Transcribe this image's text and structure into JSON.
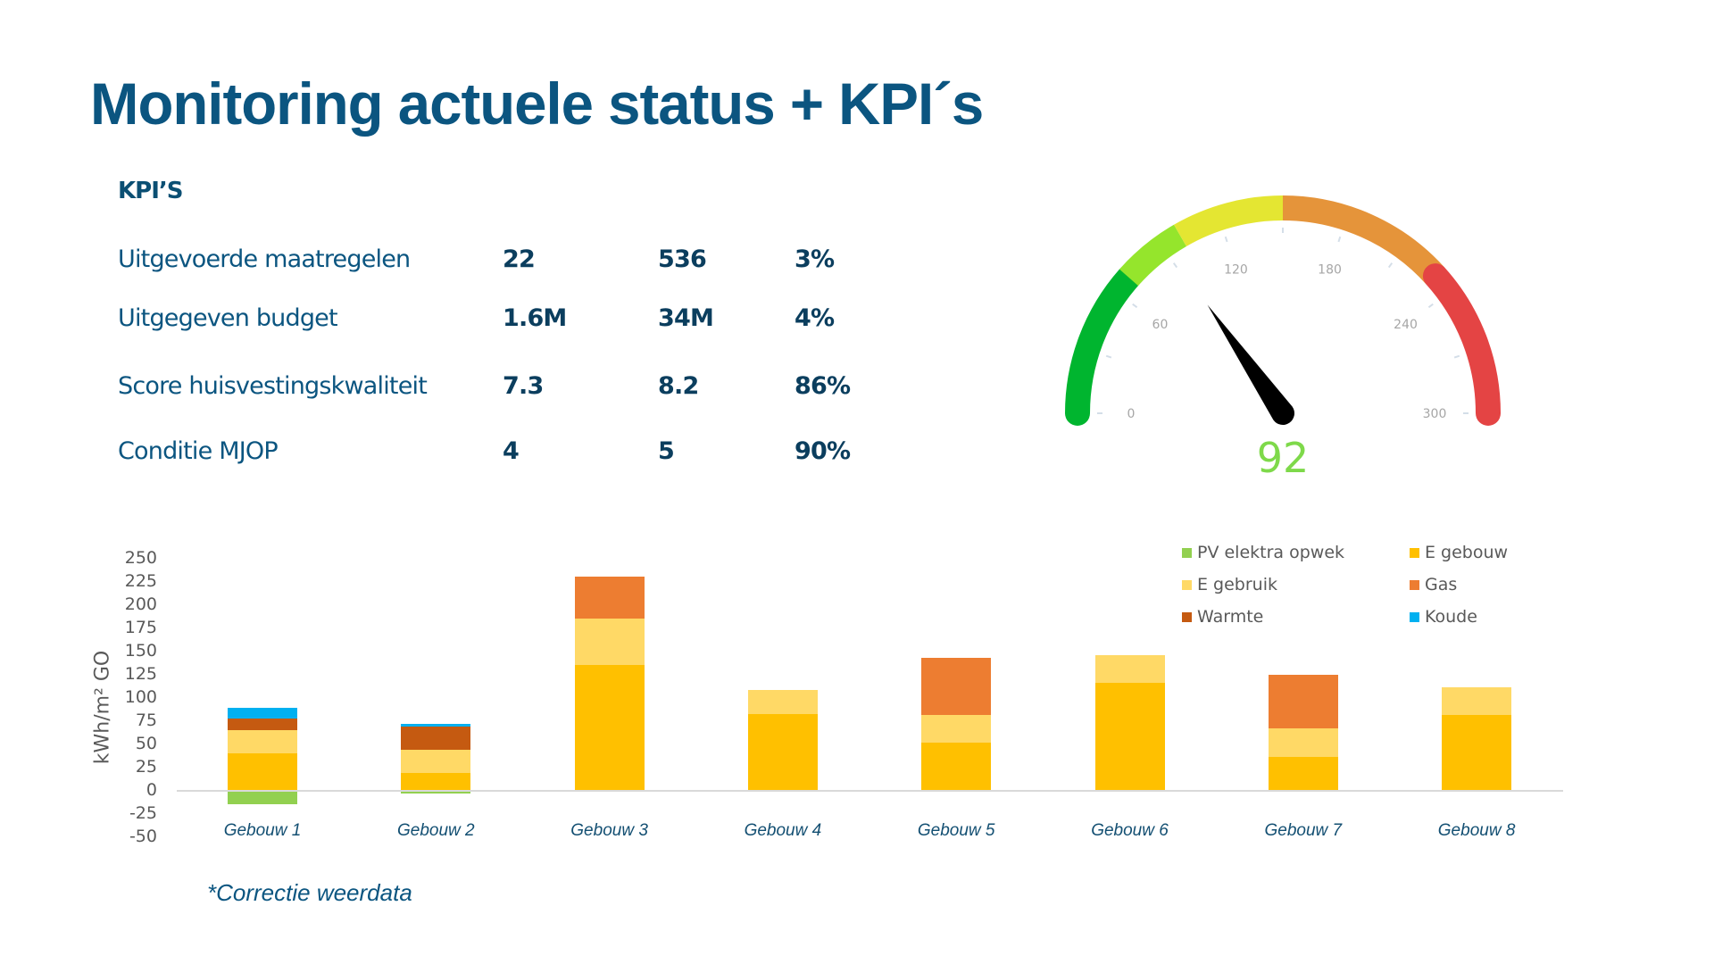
{
  "title": "Monitoring actuele status + KPI´s",
  "kpis": {
    "header": "KPI’S",
    "rows": [
      {
        "label": "Uitgevoerde maatregelen",
        "v1": "22",
        "v2": "536",
        "v3": "3%"
      },
      {
        "label": "Uitgegeven budget",
        "v1": "1.6M",
        "v2": "34M",
        "v3": "4%"
      },
      {
        "label": "Score huisvestingskwaliteit",
        "v1": "7.3",
        "v2": "8.2",
        "v3": "86%"
      },
      {
        "label": "Conditie MJOP",
        "v1": "4",
        "v2": "5",
        "v3": "90%"
      }
    ]
  },
  "gauge": {
    "value": "92",
    "min": 0,
    "max": 300,
    "labels": [
      "0",
      "60",
      "120",
      "180",
      "240",
      "300"
    ],
    "bands": [
      {
        "from": 0,
        "to": 69,
        "color": "#00B52F"
      },
      {
        "from": 69,
        "to": 100,
        "color": "#95E52C"
      },
      {
        "from": 100,
        "to": 150,
        "color": "#E4E632"
      },
      {
        "from": 150,
        "to": 230,
        "color": "#E5943A"
      },
      {
        "from": 230,
        "to": 300,
        "color": "#E44444"
      }
    ],
    "value_color": "#7ED94A"
  },
  "footnote": "*Correctie weerdata",
  "chart_data": {
    "type": "bar",
    "stacked": true,
    "title": "",
    "xlabel": "",
    "ylabel": "kWh/m² GO",
    "ylim": [
      -50,
      250
    ],
    "yticks": [
      "250",
      "225",
      "200",
      "175",
      "150",
      "125",
      "100",
      "75",
      "50",
      "25",
      "0",
      "-25",
      "-50"
    ],
    "categories": [
      "Gebouw 1",
      "Gebouw 2",
      "Gebouw 3",
      "Gebouw 4",
      "Gebouw 5",
      "Gebouw 6",
      "Gebouw 7",
      "Gebouw 8"
    ],
    "series": [
      {
        "name": "PV elektra opwek",
        "color": "#92D050",
        "values": [
          -14,
          -3,
          0,
          0,
          0,
          0,
          0,
          0
        ]
      },
      {
        "name": "E gebouw",
        "color": "#FFC000",
        "values": [
          40,
          19,
          136,
          83,
          52,
          116,
          37,
          82
        ]
      },
      {
        "name": "E gebruik",
        "color": "#FFD966",
        "values": [
          25,
          25,
          50,
          26,
          30,
          30,
          30,
          30
        ]
      },
      {
        "name": "Gas",
        "color": "#ED7D31",
        "values": [
          0,
          0,
          45,
          0,
          61,
          0,
          58,
          0
        ]
      },
      {
        "name": "Warmte",
        "color": "#C55A11",
        "values": [
          13,
          25,
          0,
          0,
          0,
          0,
          0,
          0
        ]
      },
      {
        "name": "Koude",
        "color": "#00B0F0",
        "values": [
          11,
          3,
          0,
          0,
          0,
          0,
          0,
          0
        ]
      }
    ],
    "legend": {
      "position": "top-right",
      "items": [
        {
          "label": "PV elektra opwek",
          "color": "#92D050"
        },
        {
          "label": "E gebouw",
          "color": "#FFC000"
        },
        {
          "label": "E gebruik",
          "color": "#FFD966"
        },
        {
          "label": "Gas",
          "color": "#ED7D31"
        },
        {
          "label": "Warmte",
          "color": "#C55A11"
        },
        {
          "label": "Koude",
          "color": "#00B0F0"
        }
      ]
    },
    "grid": false
  }
}
